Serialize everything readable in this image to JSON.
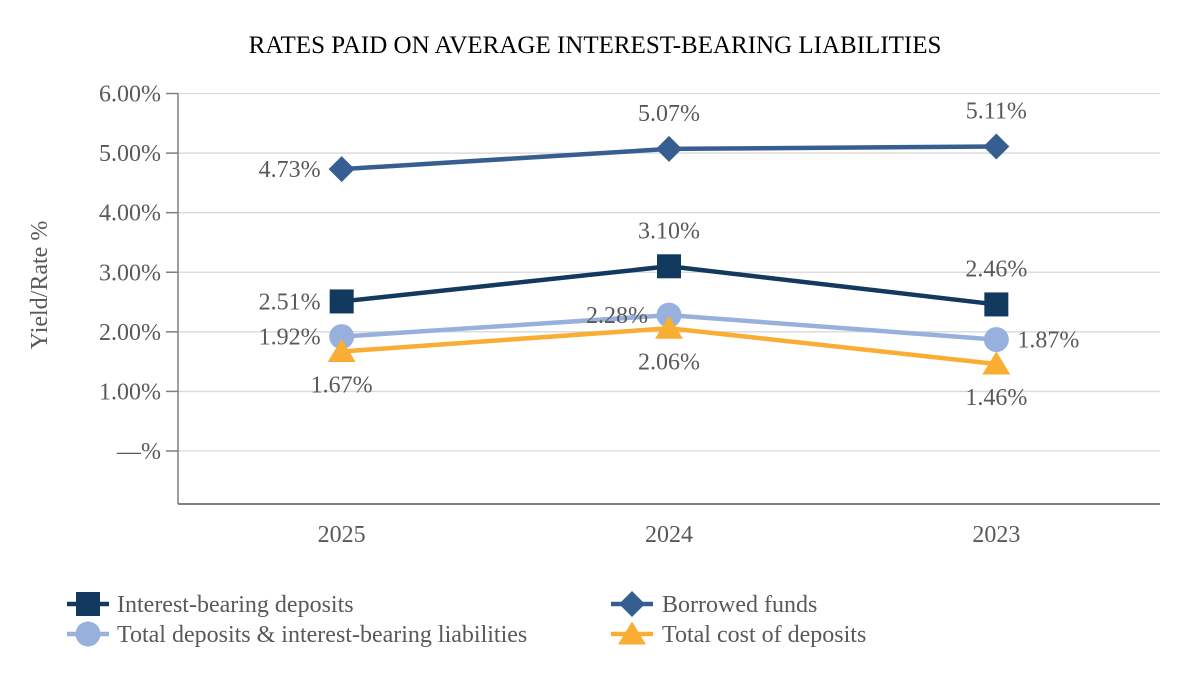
{
  "title": "RATES PAID ON AVERAGE INTEREST-BEARING LIABILITIES",
  "chart_data": {
    "type": "line",
    "title": "RATES PAID ON AVERAGE INTEREST-BEARING LIABILITIES",
    "categories": [
      "2025",
      "2024",
      "2023"
    ],
    "series": [
      {
        "name": "Borrowed funds",
        "marker": "diamond",
        "color": "#375E91",
        "values": [
          4.73,
          5.07,
          5.11
        ],
        "labels": [
          "4.73%",
          "5.07%",
          "5.11%"
        ],
        "label_pos": [
          "left",
          "above",
          "above"
        ]
      },
      {
        "name": "Interest-bearing deposits",
        "marker": "square",
        "color": "#12395E",
        "values": [
          2.51,
          3.1,
          2.46
        ],
        "labels": [
          "2.51%",
          "3.10%",
          "2.46%"
        ],
        "label_pos": [
          "left",
          "above",
          "above"
        ]
      },
      {
        "name": "Total deposits & interest-bearing liabilities",
        "marker": "circle",
        "color": "#97B0DC",
        "values": [
          1.92,
          2.28,
          1.87
        ],
        "labels": [
          "1.92%",
          "2.28%",
          "1.87%"
        ],
        "label_pos": [
          "left",
          "left",
          "right"
        ]
      },
      {
        "name": "Total cost of deposits",
        "marker": "triangle",
        "color": "#FAAD33",
        "values": [
          1.67,
          2.06,
          1.46
        ],
        "labels": [
          "1.67%",
          "2.06%",
          "1.46%"
        ],
        "label_pos": [
          "below",
          "below",
          "below"
        ]
      }
    ],
    "xlabel": "",
    "ylabel": "Yield/Rate %",
    "y_ticks": [
      {
        "label": "6.00%",
        "value": 6
      },
      {
        "label": "5.00%",
        "value": 5
      },
      {
        "label": "4.00%",
        "value": 4
      },
      {
        "label": "3.00%",
        "value": 3
      },
      {
        "label": "2.00%",
        "value": 2
      },
      {
        "label": "1.00%",
        "value": 1
      },
      {
        "label": "—%",
        "value": 0
      }
    ],
    "ylim": [
      -0.9,
      6
    ],
    "grid": true,
    "legend_position": "bottom",
    "legend_columns": [
      [
        "Interest-bearing deposits",
        "Total deposits & interest-bearing liabilities"
      ],
      [
        "Borrowed funds",
        "Total cost of deposits"
      ]
    ],
    "colors": {
      "label_text": "#595959",
      "gridline": "#D9D9D9",
      "axis": "#7F7F7F",
      "title_text": "#000000"
    }
  }
}
